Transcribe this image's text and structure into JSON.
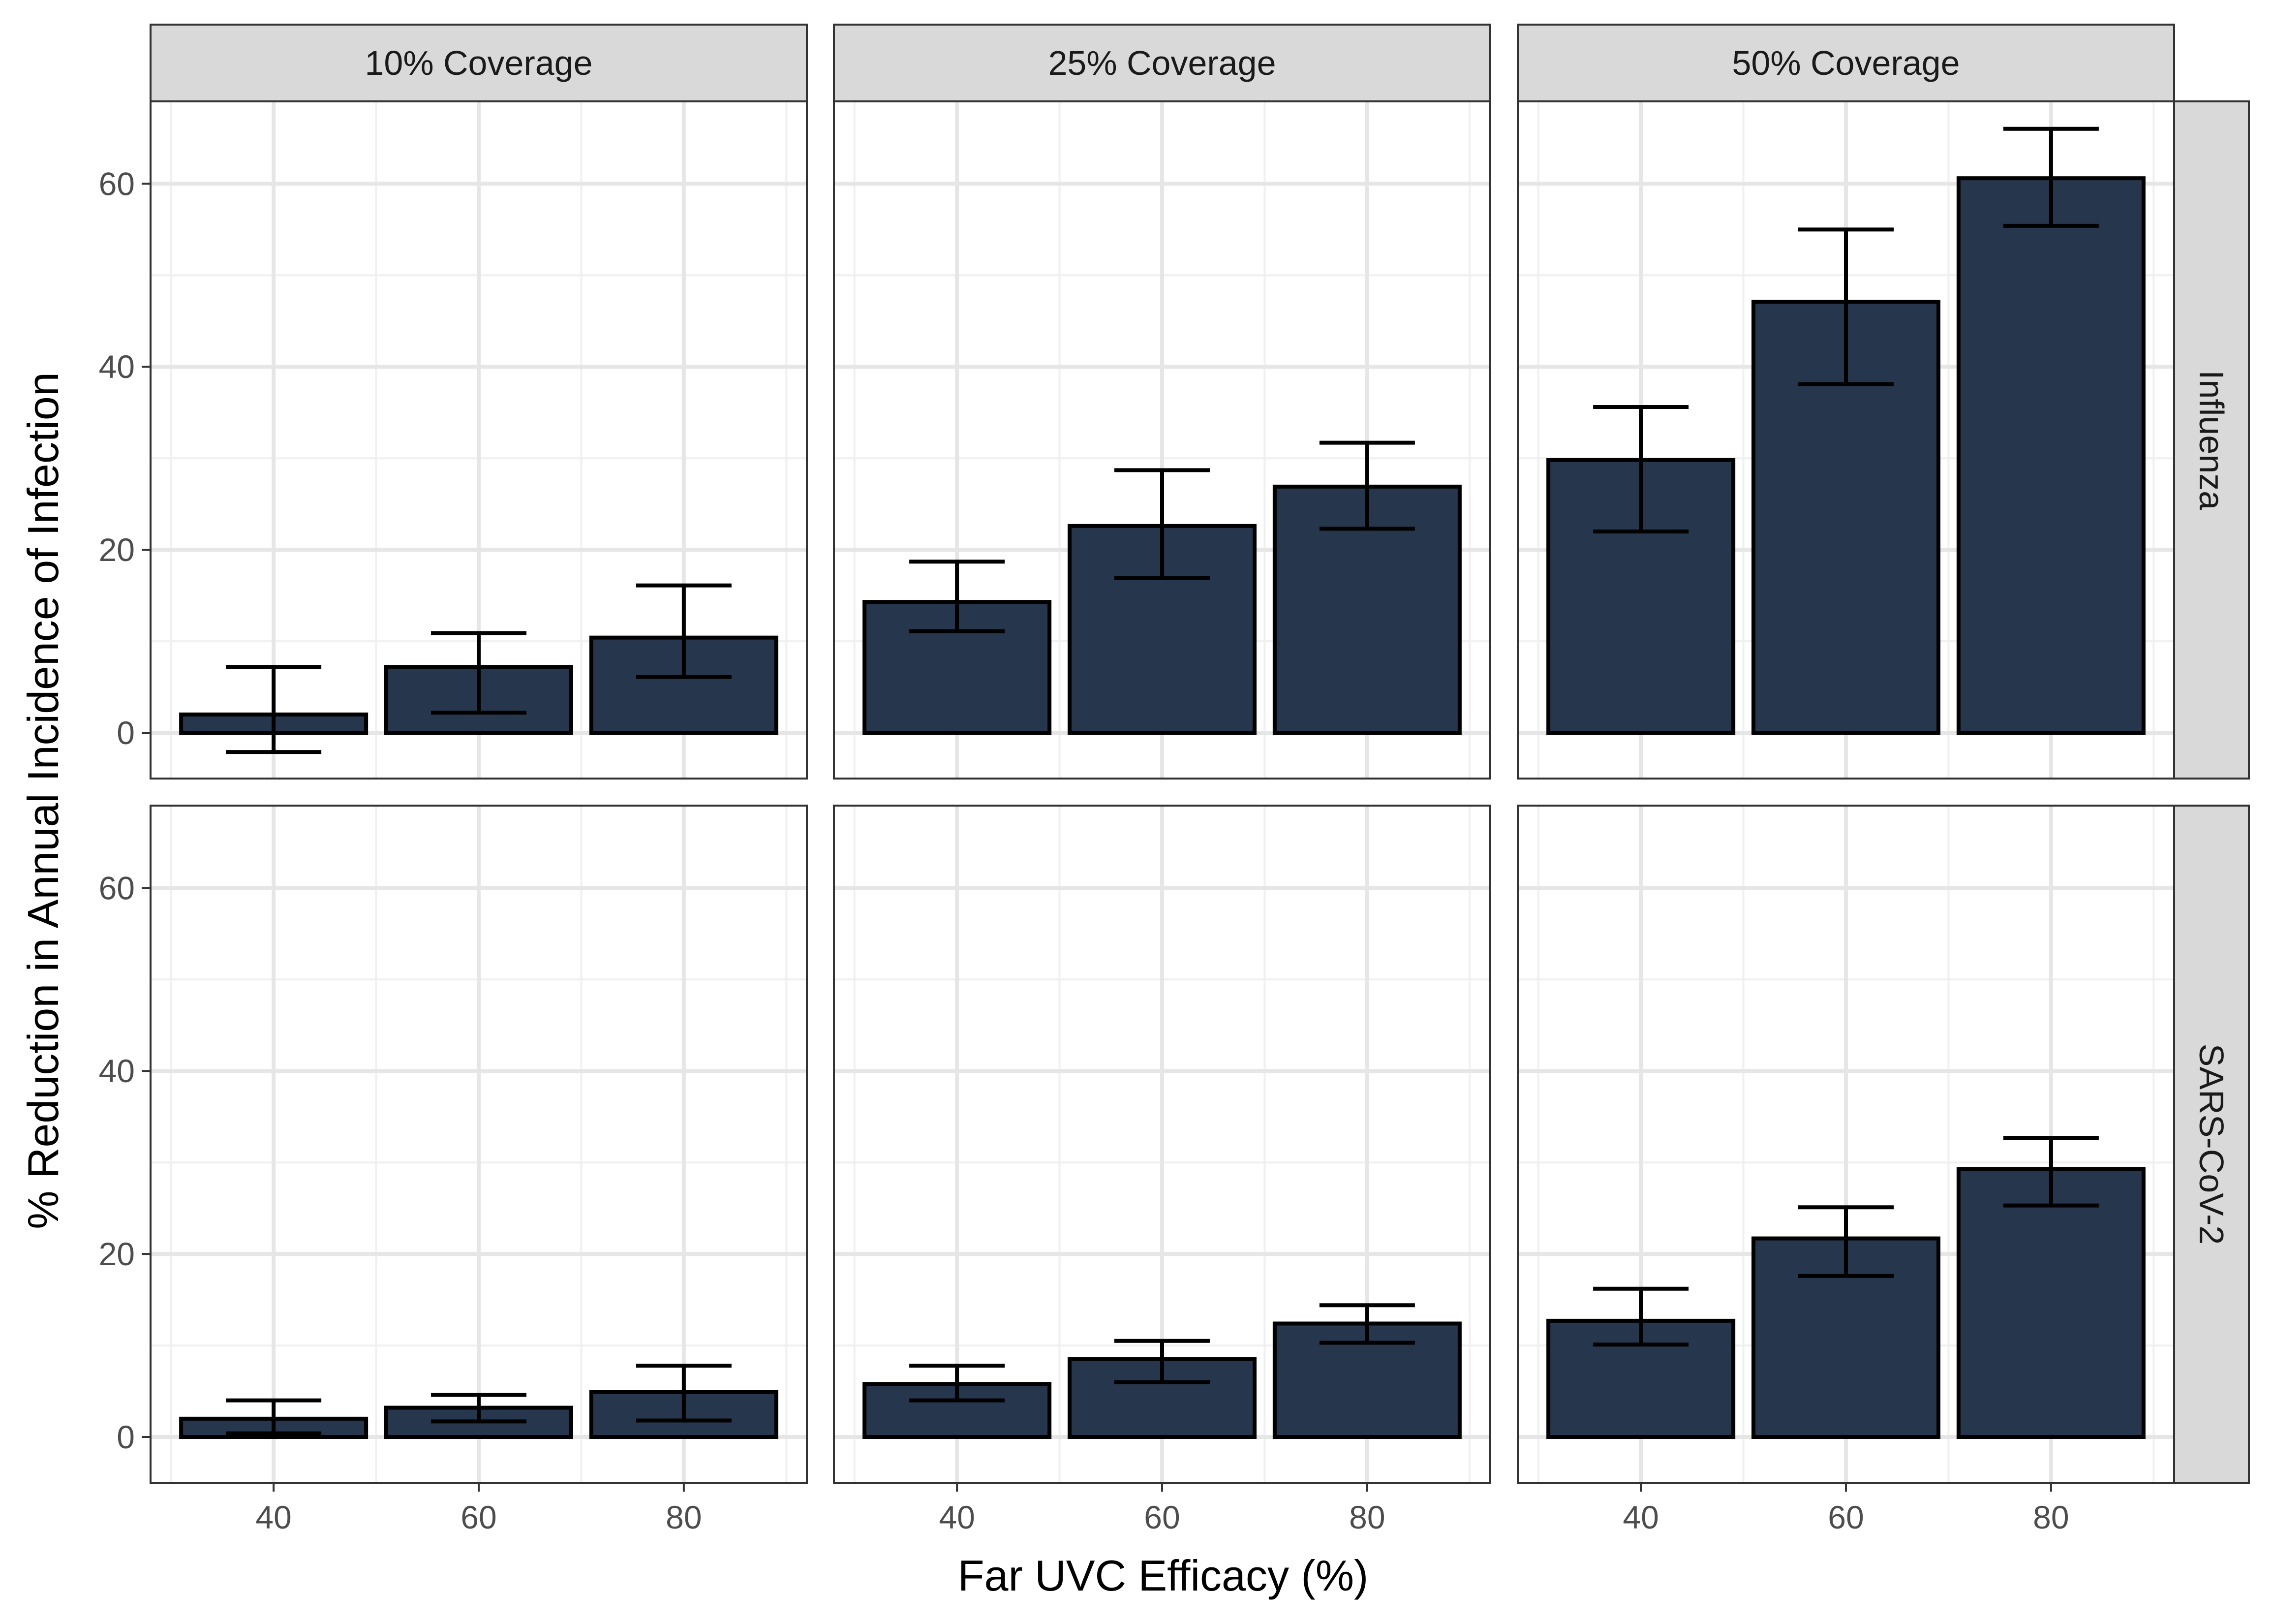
{
  "chart_data": {
    "type": "bar",
    "xlabel": "Far UVC Efficacy (%)",
    "ylabel": "% Reduction in Annual Incidence of Infection",
    "x_ticks": [
      "40",
      "60",
      "80"
    ],
    "y_ticks": [
      "0",
      "20",
      "40",
      "60"
    ],
    "ylim": [
      -5,
      69
    ],
    "xlim": [
      28,
      92
    ],
    "grid": true,
    "bar_color": "#26374d",
    "bar_outline": "#000000",
    "columns": [
      "10% Coverage",
      "25% Coverage",
      "50% Coverage"
    ],
    "rows": [
      "Influenza",
      "SARS-CoV-2"
    ],
    "panels": [
      {
        "row": "Influenza",
        "column": "10% Coverage",
        "x": [
          40,
          60,
          80
        ],
        "values": [
          2.0,
          7.2,
          10.4
        ],
        "error_low": [
          -2.1,
          2.2,
          6.1
        ],
        "error_high": [
          7.2,
          10.9,
          16.1
        ]
      },
      {
        "row": "Influenza",
        "column": "25% Coverage",
        "x": [
          40,
          60,
          80
        ],
        "values": [
          14.3,
          22.6,
          26.9
        ],
        "error_low": [
          11.1,
          16.9,
          22.3
        ],
        "error_high": [
          18.7,
          28.7,
          31.7
        ]
      },
      {
        "row": "Influenza",
        "column": "50% Coverage",
        "x": [
          40,
          60,
          80
        ],
        "values": [
          29.8,
          47.1,
          60.6
        ],
        "error_low": [
          22.0,
          38.1,
          55.4
        ],
        "error_high": [
          35.6,
          55.0,
          66.0
        ]
      },
      {
        "row": "SARS-CoV-2",
        "column": "10% Coverage",
        "x": [
          40,
          60,
          80
        ],
        "values": [
          2.0,
          3.2,
          4.9
        ],
        "error_low": [
          0.4,
          1.7,
          1.8
        ],
        "error_high": [
          4.0,
          4.6,
          7.8
        ]
      },
      {
        "row": "SARS-CoV-2",
        "column": "25% Coverage",
        "x": [
          40,
          60,
          80
        ],
        "values": [
          5.8,
          8.5,
          12.4
        ],
        "error_low": [
          4.0,
          6.0,
          10.3
        ],
        "error_high": [
          7.8,
          10.5,
          14.4
        ]
      },
      {
        "row": "SARS-CoV-2",
        "column": "50% Coverage",
        "x": [
          40,
          60,
          80
        ],
        "values": [
          12.7,
          21.7,
          29.3
        ],
        "error_low": [
          10.1,
          17.6,
          25.3
        ],
        "error_high": [
          16.2,
          25.1,
          32.7
        ]
      }
    ]
  }
}
